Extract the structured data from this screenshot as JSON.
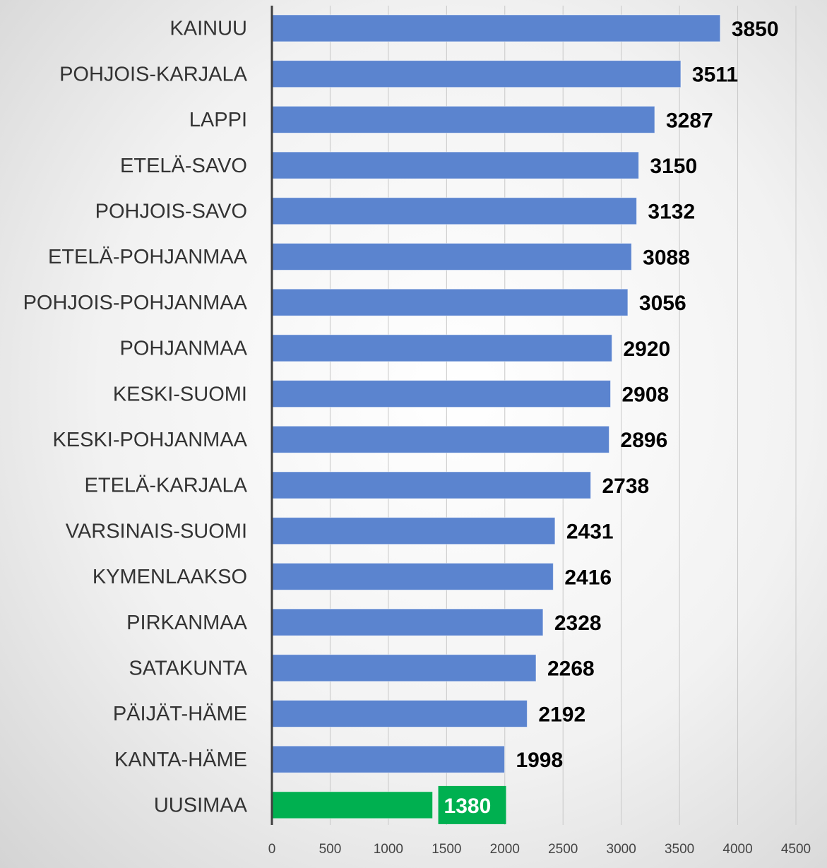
{
  "chart_data": {
    "type": "barh",
    "categories": [
      "KAINUU",
      "POHJOIS-KARJALA",
      "LAPPI",
      "ETELÄ-SAVO",
      "POHJOIS-SAVO",
      "ETELÄ-POHJANMAA",
      "POHJOIS-POHJANMAA",
      "POHJANMAA",
      "KESKI-SUOMI",
      "KESKI-POHJANMAA",
      "ETELÄ-KARJALA",
      "VARSINAIS-SUOMI",
      "KYMENLAAKSO",
      "PIRKANMAA",
      "SATAKUNTA",
      "PÄIJÄT-HÄME",
      "KANTA-HÄME",
      "UUSIMAA"
    ],
    "values": [
      3850,
      3511,
      3287,
      3150,
      3132,
      3088,
      3056,
      2920,
      2908,
      2896,
      2738,
      2431,
      2416,
      2328,
      2268,
      2192,
      1998,
      1380
    ],
    "colors": [
      "#5b84cf",
      "#5b84cf",
      "#5b84cf",
      "#5b84cf",
      "#5b84cf",
      "#5b84cf",
      "#5b84cf",
      "#5b84cf",
      "#5b84cf",
      "#5b84cf",
      "#5b84cf",
      "#5b84cf",
      "#5b84cf",
      "#5b84cf",
      "#5b84cf",
      "#5b84cf",
      "#5b84cf",
      "#00b050"
    ],
    "value_label_colors": [
      "#000000",
      "#000000",
      "#000000",
      "#000000",
      "#000000",
      "#000000",
      "#000000",
      "#000000",
      "#000000",
      "#000000",
      "#000000",
      "#000000",
      "#000000",
      "#000000",
      "#000000",
      "#000000",
      "#000000",
      "#ffffff"
    ],
    "xlim": [
      0,
      4500
    ],
    "xticks": [
      0,
      500,
      1000,
      1500,
      2000,
      2500,
      3000,
      3500,
      4000,
      4500
    ],
    "grid": true
  }
}
